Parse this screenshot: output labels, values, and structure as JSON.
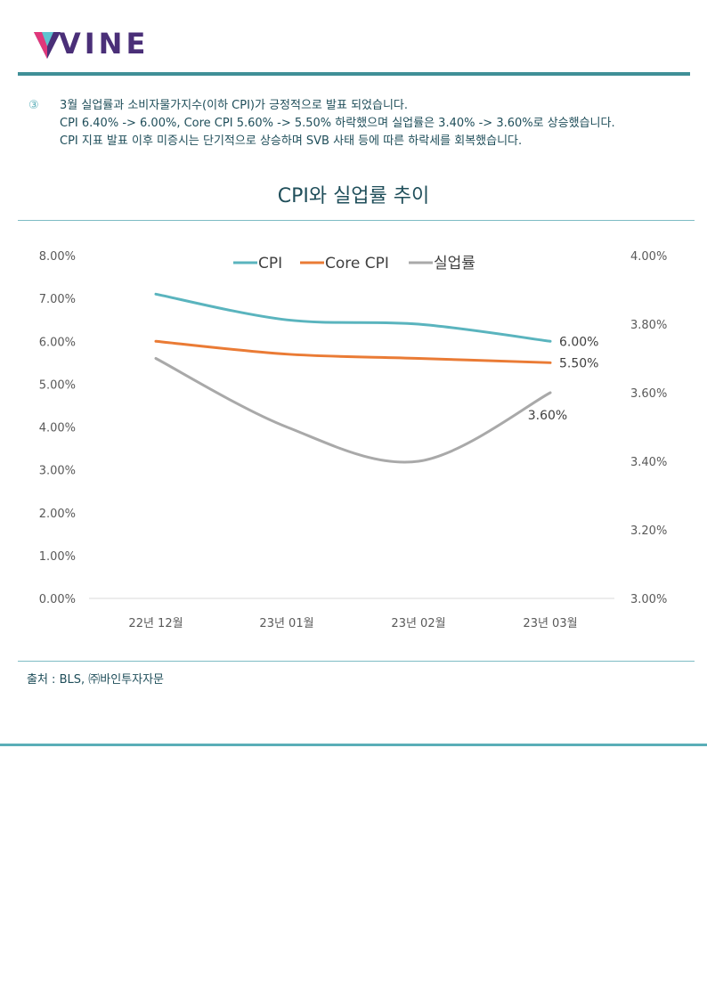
{
  "header": {
    "logo_text": "VINE"
  },
  "note": {
    "marker": "③",
    "lines": [
      "3월 실업률과 소비자물가지수(이하 CPI)가 긍정적으로 발표 되었습니다.",
      "CPI 6.40% -> 6.00%, Core CPI 5.60% -> 5.50% 하락했으며 실업률은 3.40% -> 3.60%로 상승했습니다.",
      "CPI 지표 발표 이후 미증시는 단기적으로 상승하며 SVB 사태 등에 따른 하락세를 회복했습니다."
    ]
  },
  "chart_data": {
    "type": "line",
    "title": "CPI와 실업률 추이",
    "categories": [
      "22년 12월",
      "23년 01월",
      "23년 02월",
      "23년 03월"
    ],
    "y_left": {
      "range": [
        0,
        8
      ],
      "ticks": [
        "0.00%",
        "1.00%",
        "2.00%",
        "3.00%",
        "4.00%",
        "5.00%",
        "6.00%",
        "7.00%",
        "8.00%"
      ]
    },
    "y_right": {
      "range": [
        3.0,
        4.0
      ],
      "ticks": [
        "3.00%",
        "3.20%",
        "3.40%",
        "3.60%",
        "3.80%",
        "4.00%"
      ]
    },
    "legend_position": "top",
    "series": [
      {
        "name": "CPI",
        "axis": "left",
        "color": "#5ab4be",
        "values": [
          7.1,
          6.5,
          6.4,
          6.0
        ],
        "end_label": "6.00%"
      },
      {
        "name": "Core CPI",
        "axis": "left",
        "color": "#ea7b35",
        "values": [
          6.0,
          5.7,
          5.6,
          5.5
        ],
        "end_label": "5.50%"
      },
      {
        "name": "실업률",
        "axis": "right",
        "color": "#a9a9a9",
        "values": [
          3.7,
          3.5,
          3.4,
          3.6
        ],
        "end_label": "3.60%"
      }
    ]
  },
  "footer": {
    "source": "출처 : BLS, ㈜바인투자자문"
  }
}
